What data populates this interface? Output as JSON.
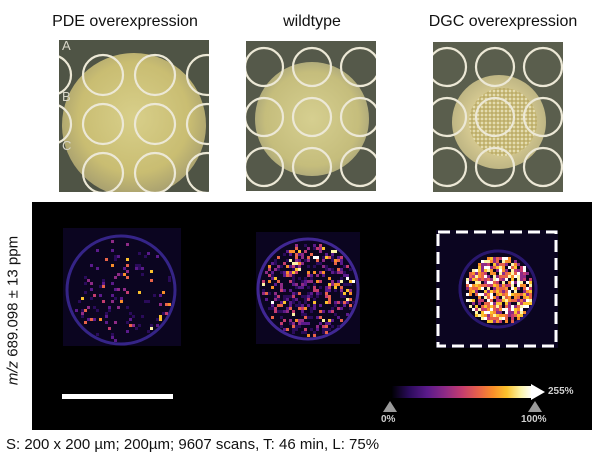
{
  "panels": {
    "pde_label": "PDE overexpression",
    "wt_label": "wildtype",
    "dgc_label": "DGC overexpression"
  },
  "photo_row_letters": [
    "A",
    "B",
    "C"
  ],
  "ms_image": {
    "ylabel_italic": "m/z",
    "ylabel_rest": " 689.098 ± 13 ppm",
    "colorbar": {
      "min_label": "0%",
      "threshold_label": "100%",
      "max_label": "255%"
    }
  },
  "caption": "S: 200 x 200 µm; 200µm; 9607 scans, T: 46 min, L: 75%",
  "colors": {
    "panel_bg": "#000000",
    "plate_green": "#55594a",
    "colony": "#c8c07a",
    "ring": "#4a2ea8"
  }
}
